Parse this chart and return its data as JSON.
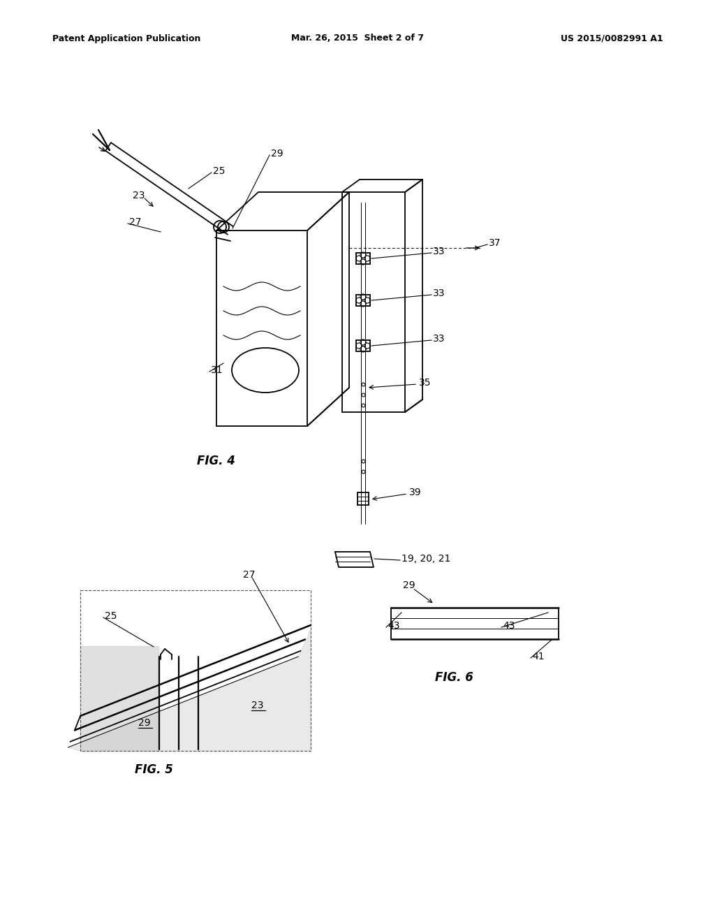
{
  "bg_color": "#ffffff",
  "header_left": "Patent Application Publication",
  "header_mid": "Mar. 26, 2015  Sheet 2 of 7",
  "header_right": "US 2015/0082991 A1",
  "fig4_label": "FIG. 4",
  "fig5_label": "FIG. 5",
  "fig6_label": "FIG. 6",
  "line_color": "#000000",
  "lw": 1.3,
  "tlw": 0.7
}
